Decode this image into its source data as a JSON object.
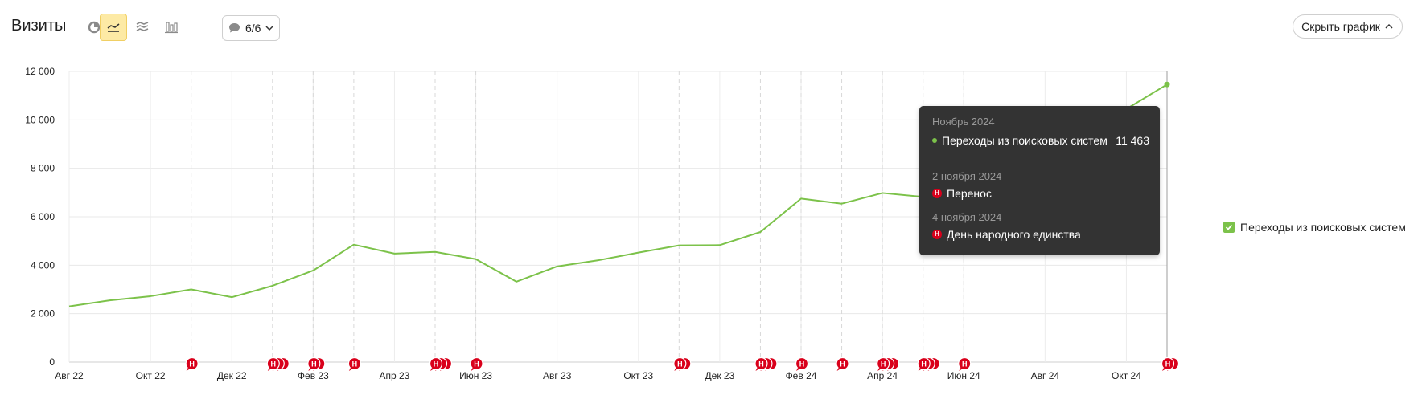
{
  "header": {
    "title": "Визиты",
    "notes_count": "6/6",
    "hide_chart_label": "Скрыть график"
  },
  "toolbar_icons": [
    "pie-chart-icon",
    "line-chart-icon",
    "area-chart-icon",
    "bar-chart-icon",
    "comment-icon"
  ],
  "colors": {
    "series": "#7cc24a",
    "note_badge": "#d9001b",
    "active_tool": "#fdeaa5"
  },
  "legend": {
    "label": "Переходы из поисковых систем",
    "checked": true
  },
  "tooltip": {
    "period": "Ноябрь 2024",
    "metric": "Переходы из поисковых систем",
    "value": "11 463",
    "notes": [
      {
        "date": "2 ноября 2024",
        "badge": "Н",
        "text": "Перенос"
      },
      {
        "date": "4 ноября 2024",
        "badge": "Н",
        "text": "День народного единства"
      }
    ]
  },
  "chart_data": {
    "type": "line",
    "x": [
      "2022-08",
      "2022-09",
      "2022-10",
      "2022-11",
      "2022-12",
      "2023-01",
      "2023-02",
      "2023-03",
      "2023-04",
      "2023-05",
      "2023-06",
      "2023-07",
      "2023-08",
      "2023-09",
      "2023-10",
      "2023-11",
      "2023-12",
      "2024-01",
      "2024-02",
      "2024-03",
      "2024-04",
      "2024-05",
      "2024-06",
      "2024-07",
      "2024-08",
      "2024-09",
      "2024-10",
      "2024-11"
    ],
    "series": [
      {
        "name": "Переходы из поисковых систем",
        "values": [
          2300,
          2550,
          2720,
          3000,
          2680,
          3150,
          3780,
          4850,
          4480,
          4550,
          4250,
          3320,
          3950,
          4200,
          4520,
          4820,
          4830,
          5370,
          6750,
          6540,
          6980,
          6820,
          7300,
          7700,
          8300,
          9200,
          10450,
          11463
        ]
      }
    ],
    "x_tick_labels": [
      "Авг 22",
      "Окт 22",
      "Дек 22",
      "Фев 23",
      "Апр 23",
      "Июн 23",
      "Авг 23",
      "Окт 23",
      "Дек 23",
      "Фев 24",
      "Апр 24",
      "Июн 24",
      "Авг 24",
      "Окт 24"
    ],
    "x_tick_months": [
      "2022-08",
      "2022-10",
      "2022-12",
      "2023-02",
      "2023-04",
      "2023-06",
      "2023-08",
      "2023-10",
      "2023-12",
      "2024-02",
      "2024-04",
      "2024-06",
      "2024-08",
      "2024-10"
    ],
    "y_ticks": [
      0,
      2000,
      4000,
      6000,
      8000,
      10000,
      12000
    ],
    "y_tick_labels": [
      "0",
      "2 000",
      "4 000",
      "6 000",
      "8 000",
      "10 000",
      "12 000"
    ],
    "ylim": [
      0,
      12000
    ],
    "grid": true,
    "legend_position": "right",
    "annotations": [
      {
        "month": "2022-11",
        "count": 1
      },
      {
        "month": "2023-01",
        "count": 3
      },
      {
        "month": "2023-02",
        "count": 2
      },
      {
        "month": "2023-03",
        "count": 1
      },
      {
        "month": "2023-05",
        "count": 3
      },
      {
        "month": "2023-06",
        "count": 1
      },
      {
        "month": "2023-11",
        "count": 2
      },
      {
        "month": "2024-01",
        "count": 3
      },
      {
        "month": "2024-02",
        "count": 1
      },
      {
        "month": "2024-03",
        "count": 1
      },
      {
        "month": "2024-04",
        "count": 3
      },
      {
        "month": "2024-05",
        "count": 3
      },
      {
        "month": "2024-06",
        "count": 1
      },
      {
        "month": "2024-11",
        "count": 2
      }
    ],
    "annotation_badge": "Н",
    "highlight_month": "2024-11"
  }
}
